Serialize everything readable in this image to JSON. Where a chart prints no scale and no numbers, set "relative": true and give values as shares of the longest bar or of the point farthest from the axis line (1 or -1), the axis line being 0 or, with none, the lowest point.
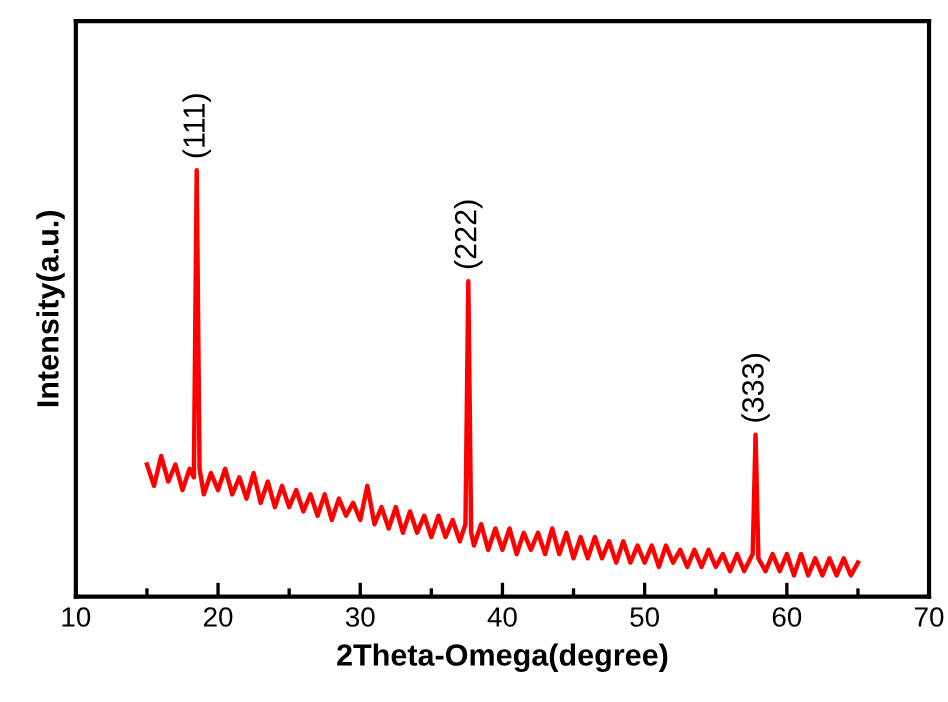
{
  "chart_data": {
    "type": "line",
    "relative": true,
    "xlabel": "2Theta-Omega(degree)",
    "ylabel": "Intensity(a.u.)",
    "xlim": [
      10,
      70
    ],
    "xticks": [
      10,
      20,
      30,
      40,
      50,
      60,
      70
    ],
    "grid": false,
    "marker": "none",
    "line_style": "solid",
    "annotations": [
      {
        "text": "(111)",
        "x": 18.5,
        "y": 1.0
      },
      {
        "text": "(222)",
        "x": 37.6,
        "y": 0.74
      },
      {
        "text": "(333)",
        "x": 57.8,
        "y": 0.38
      }
    ],
    "series": [
      {
        "color": "#ff0000",
        "x": [
          15,
          15.5,
          16,
          16.5,
          17,
          17.5,
          18,
          18.3,
          18.5,
          18.7,
          19,
          19.5,
          20,
          20.5,
          21,
          21.5,
          22,
          22.5,
          23,
          23.5,
          24,
          24.5,
          25,
          25.5,
          26,
          26.5,
          27,
          27.5,
          28,
          28.5,
          29,
          29.5,
          30,
          30.5,
          31,
          31.5,
          32,
          32.5,
          33,
          33.5,
          34,
          34.5,
          35,
          35.5,
          36,
          36.5,
          37,
          37.4,
          37.6,
          37.8,
          38,
          38.5,
          39,
          39.5,
          40,
          40.5,
          41,
          41.5,
          42,
          42.5,
          43,
          43.5,
          44,
          44.5,
          45,
          45.5,
          46,
          46.5,
          47,
          47.5,
          48,
          48.5,
          49,
          49.5,
          50,
          50.5,
          51,
          51.5,
          52,
          52.5,
          53,
          53.5,
          54,
          54.5,
          55,
          55.5,
          56,
          56.5,
          57,
          57.6,
          57.8,
          58,
          58.5,
          59,
          59.5,
          60,
          60.5,
          61,
          61.5,
          62,
          62.5,
          63,
          63.5,
          64,
          64.5,
          65
        ],
        "values": [
          0.31,
          0.26,
          0.33,
          0.27,
          0.31,
          0.25,
          0.3,
          0.28,
          1.0,
          0.3,
          0.24,
          0.29,
          0.25,
          0.3,
          0.24,
          0.28,
          0.23,
          0.29,
          0.22,
          0.27,
          0.21,
          0.26,
          0.21,
          0.25,
          0.2,
          0.24,
          0.19,
          0.24,
          0.18,
          0.23,
          0.19,
          0.22,
          0.18,
          0.26,
          0.17,
          0.21,
          0.16,
          0.21,
          0.15,
          0.2,
          0.15,
          0.19,
          0.14,
          0.19,
          0.14,
          0.18,
          0.13,
          0.17,
          0.74,
          0.15,
          0.12,
          0.17,
          0.11,
          0.16,
          0.11,
          0.16,
          0.1,
          0.15,
          0.11,
          0.15,
          0.1,
          0.16,
          0.1,
          0.15,
          0.09,
          0.14,
          0.09,
          0.14,
          0.09,
          0.13,
          0.08,
          0.13,
          0.08,
          0.12,
          0.08,
          0.12,
          0.07,
          0.12,
          0.08,
          0.11,
          0.07,
          0.11,
          0.07,
          0.11,
          0.07,
          0.1,
          0.06,
          0.1,
          0.06,
          0.1,
          0.38,
          0.09,
          0.06,
          0.1,
          0.06,
          0.1,
          0.05,
          0.1,
          0.05,
          0.09,
          0.05,
          0.09,
          0.05,
          0.09,
          0.05,
          0.08
        ]
      }
    ]
  }
}
